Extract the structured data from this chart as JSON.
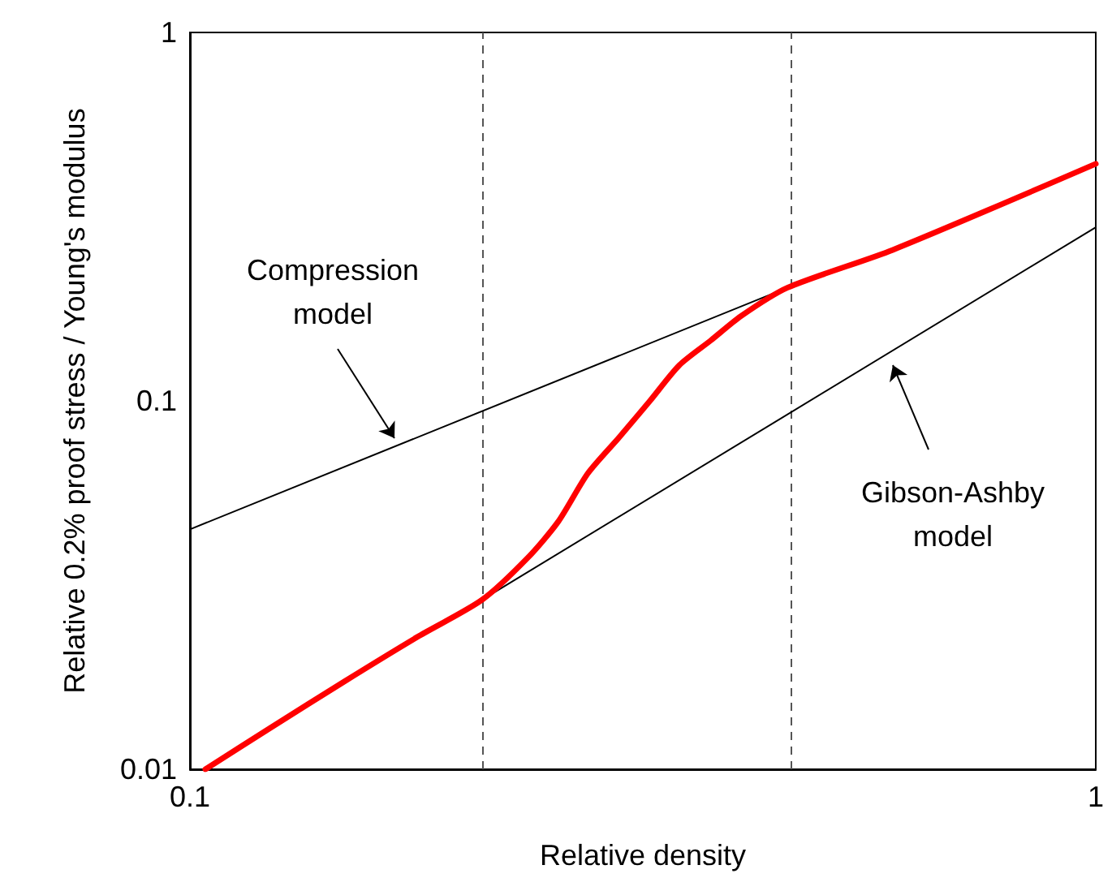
{
  "chart_data": {
    "type": "line",
    "xlabel": "Relative density",
    "ylabel": "Relative 0.2% proof stress / Young's modulus",
    "log": "xy",
    "xlim": [
      0.1,
      1
    ],
    "ylim": [
      0.01,
      1
    ],
    "xticks": [
      0.1,
      1
    ],
    "yticks": [
      0.01,
      0.1,
      1
    ],
    "grid": false,
    "marker": "none",
    "line_style": "solid",
    "series": [
      {
        "color": "#000000",
        "x": [
          0.1,
          0.457
        ],
        "values": [
          0.0448,
          0.203
        ]
      },
      {
        "color": "#000000",
        "x": [
          0.21,
          1
        ],
        "values": [
          0.0288,
          0.296
        ]
      },
      {
        "color": "#ff0000",
        "x": [
          0.104,
          0.123,
          0.148,
          0.179,
          0.21,
          0.236,
          0.255,
          0.275,
          0.298,
          0.322,
          0.347,
          0.376,
          0.406,
          0.457,
          0.597,
          1
        ],
        "values": [
          0.01,
          0.013,
          0.0173,
          0.023,
          0.0288,
          0.0375,
          0.047,
          0.0636,
          0.0798,
          0.1,
          0.125,
          0.146,
          0.17,
          0.203,
          0.257,
          0.44
        ]
      }
    ],
    "ref_lines": [
      {
        "axis": "x",
        "value": 0.21,
        "color": "#555555",
        "line_style": "dashed"
      },
      {
        "axis": "x",
        "value": 0.46,
        "color": "#555555",
        "line_style": "dashed"
      }
    ],
    "annotations": [
      "Compression\nmodel",
      "Gibson-Ashby\nmodel"
    ]
  }
}
